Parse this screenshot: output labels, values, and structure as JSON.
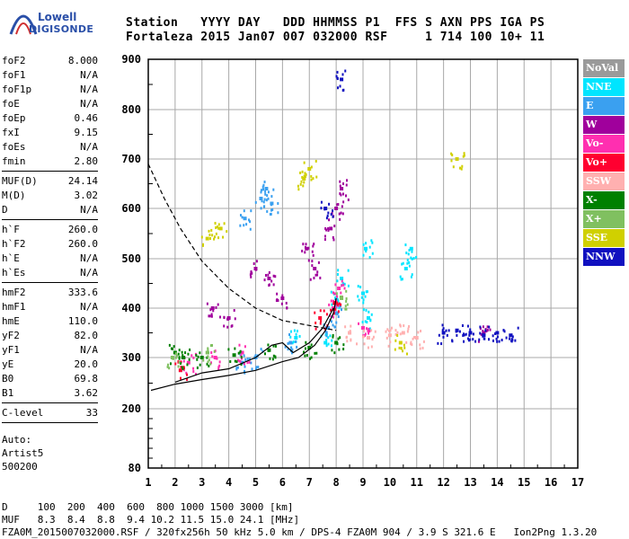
{
  "logo": {
    "line1": "Lowell",
    "line2": "DIGISONDE"
  },
  "header": {
    "line1": "Station   YYYY DAY   DDD HHMMSS P1  FFS S AXN PPS IGA PS",
    "line2": "Fortaleza 2015 Jan07 007 032000 RSF     1 714 100 10+ 11"
  },
  "params": {
    "group1": [
      {
        "name": "foF2",
        "value": "8.000"
      },
      {
        "name": "foF1",
        "value": "N/A"
      },
      {
        "name": "foF1p",
        "value": "N/A"
      },
      {
        "name": "foE",
        "value": "N/A"
      },
      {
        "name": "foEp",
        "value": "0.46"
      },
      {
        "name": "fxI",
        "value": "9.15"
      },
      {
        "name": "foEs",
        "value": "N/A"
      },
      {
        "name": "fmin",
        "value": "2.80"
      }
    ],
    "group2": [
      {
        "name": "MUF(D)",
        "value": "24.14"
      },
      {
        "name": "M(D)",
        "value": "3.02"
      },
      {
        "name": "D",
        "value": "N/A"
      }
    ],
    "group3": [
      {
        "name": "h`F",
        "value": "260.0"
      },
      {
        "name": "h`F2",
        "value": "260.0"
      },
      {
        "name": "h`E",
        "value": "N/A"
      },
      {
        "name": "h`Es",
        "value": "N/A"
      }
    ],
    "group4": [
      {
        "name": "hmF2",
        "value": "333.6"
      },
      {
        "name": "hmF1",
        "value": "N/A"
      },
      {
        "name": "hmE",
        "value": "110.0"
      },
      {
        "name": "yF2",
        "value": "82.0"
      },
      {
        "name": "yF1",
        "value": "N/A"
      },
      {
        "name": "yE",
        "value": "20.0"
      },
      {
        "name": "B0",
        "value": "69.8"
      },
      {
        "name": "B1",
        "value": "3.62"
      }
    ],
    "group5": [
      {
        "name": "C-level",
        "value": "33"
      }
    ],
    "auto": [
      "Auto:",
      "Artist5",
      "500200"
    ]
  },
  "legend": [
    {
      "label": "NoVal",
      "color": "#9a9a9a"
    },
    {
      "label": "NNE",
      "color": "#00e5ff"
    },
    {
      "label": "E",
      "color": "#3aa0f0"
    },
    {
      "label": "W",
      "color": "#a0009c"
    },
    {
      "label": "Vo-",
      "color": "#ff2fb0"
    },
    {
      "label": "Vo+",
      "color": "#ff0030"
    },
    {
      "label": "SSW",
      "color": "#ffb0b0"
    },
    {
      "label": "X-",
      "color": "#008000"
    },
    {
      "label": "X+",
      "color": "#80c060"
    },
    {
      "label": "SSE",
      "color": "#d0d000"
    },
    {
      "label": "NNW",
      "color": "#1010c0"
    }
  ],
  "footer": {
    "line1": "D     100  200  400  600  800 1000 1500 3000 [km]",
    "line2": "MUF   8.3  8.4  8.8  9.4 10.2 11.5 15.0 24.1 [MHz]",
    "line3": "FZA0M_2015007032000.RSF / 320fx256h 50 kHz 5.0 km / DPS-4 FZA0M 904 / 3.9 S 321.6 E   Ion2Png 1.3.20"
  },
  "chart_data": {
    "type": "scatter",
    "title": "",
    "xlabel": "",
    "ylabel": "",
    "x_ticks": [
      1,
      2,
      3,
      4,
      5,
      6,
      7,
      8,
      9,
      10,
      11,
      12,
      13,
      14,
      15,
      16,
      17
    ],
    "y_ticks": [
      80,
      200,
      300,
      400,
      500,
      600,
      700,
      800,
      900
    ],
    "xlim": [
      1,
      17
    ],
    "ylim": [
      80,
      900
    ],
    "y_scale": "log-like (virtual height, km)",
    "grid": true,
    "series": [
      {
        "name": "NNE",
        "color": "#00e5ff",
        "points": [
          [
            8.0,
            420
          ],
          [
            8.2,
            460
          ],
          [
            9.0,
            430
          ],
          [
            9.1,
            520
          ],
          [
            9.2,
            380
          ],
          [
            10.6,
            480
          ],
          [
            10.8,
            520
          ],
          [
            6.5,
            340
          ],
          [
            7.6,
            330
          ]
        ]
      },
      {
        "name": "E",
        "color": "#3aa0f0",
        "points": [
          [
            5.2,
            620
          ],
          [
            5.4,
            640
          ],
          [
            5.6,
            610
          ],
          [
            4.6,
            580
          ],
          [
            7.7,
            360
          ],
          [
            8.0,
            390
          ],
          [
            6.3,
            330
          ],
          [
            5.0,
            300
          ],
          [
            4.5,
            290
          ]
        ]
      },
      {
        "name": "W",
        "color": "#a0009c",
        "points": [
          [
            5.0,
            480
          ],
          [
            5.5,
            460
          ],
          [
            6.0,
            420
          ],
          [
            6.9,
            520
          ],
          [
            7.2,
            480
          ],
          [
            7.8,
            560
          ],
          [
            8.0,
            600
          ],
          [
            8.2,
            640
          ],
          [
            3.4,
            400
          ],
          [
            4.0,
            380
          ],
          [
            13.5,
            350
          ]
        ]
      },
      {
        "name": "Vo-",
        "color": "#ff2fb0",
        "points": [
          [
            2.5,
            290
          ],
          [
            3.5,
            300
          ],
          [
            4.5,
            310
          ],
          [
            7.9,
            400
          ],
          [
            8.1,
            440
          ],
          [
            9.0,
            360
          ]
        ]
      },
      {
        "name": "Vo+",
        "color": "#ff0030",
        "points": [
          [
            7.4,
            380
          ],
          [
            8.0,
            410
          ],
          [
            2.2,
            275
          ]
        ]
      },
      {
        "name": "SSW",
        "color": "#ffb0b0",
        "points": [
          [
            8.5,
            350
          ],
          [
            9.2,
            340
          ],
          [
            10.0,
            345
          ],
          [
            10.5,
            350
          ],
          [
            11.0,
            340
          ]
        ]
      },
      {
        "name": "X-",
        "color": "#008000",
        "points": [
          [
            2.0,
            310
          ],
          [
            2.3,
            300
          ],
          [
            3.0,
            300
          ],
          [
            4.2,
            305
          ],
          [
            5.5,
            315
          ],
          [
            7.0,
            320
          ],
          [
            8.0,
            330
          ]
        ]
      },
      {
        "name": "X+",
        "color": "#80c060",
        "points": [
          [
            1.9,
            300
          ],
          [
            3.2,
            310
          ],
          [
            8.2,
            420
          ]
        ]
      },
      {
        "name": "SSE",
        "color": "#d0d000",
        "points": [
          [
            3.2,
            540
          ],
          [
            3.7,
            560
          ],
          [
            6.8,
            660
          ],
          [
            7.0,
            680
          ],
          [
            12.5,
            700
          ],
          [
            10.4,
            330
          ]
        ]
      },
      {
        "name": "NNW",
        "color": "#1010c0",
        "points": [
          [
            12.0,
            350
          ],
          [
            12.5,
            355
          ],
          [
            13.0,
            350
          ],
          [
            13.5,
            345
          ],
          [
            14.0,
            350
          ],
          [
            14.5,
            345
          ],
          [
            7.6,
            600
          ],
          [
            8.2,
            860
          ]
        ]
      }
    ]
  }
}
